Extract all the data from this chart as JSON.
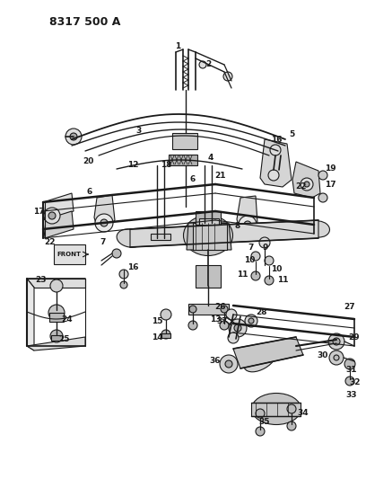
{
  "title": "8317 500 A",
  "bg": "#ffffff",
  "lc": "#1a1a1a",
  "tc": "#1a1a1a",
  "fig_w": 4.08,
  "fig_h": 5.33,
  "dpi": 100
}
